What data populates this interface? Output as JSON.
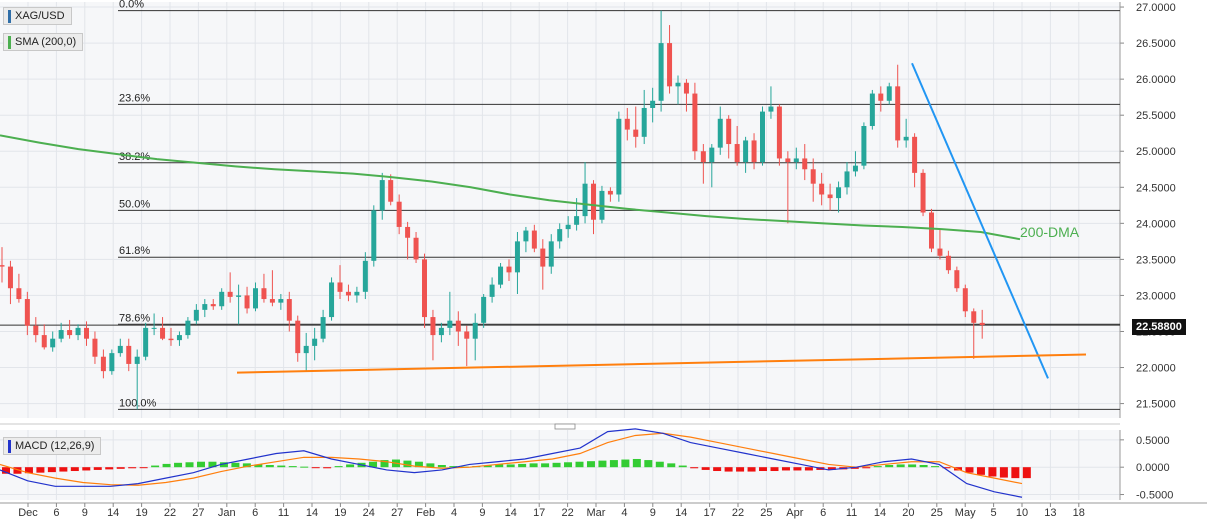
{
  "chart_data": [
    {
      "type": "candlestick",
      "symbol": "XAG/USD",
      "indicator_legend": "SMA (200,0)",
      "current_price_label": "22.58800",
      "current_price": 22.588,
      "ylim": [
        21.3,
        27.07
      ],
      "y_ticks": [
        "27.0000",
        "26.5000",
        "26.0000",
        "25.5000",
        "25.0000",
        "24.5000",
        "24.0000",
        "23.5000",
        "23.0000",
        "22.5000",
        "22.0000",
        "21.5000"
      ],
      "x_ticks": [
        "Dec",
        "6",
        "9",
        "14",
        "19",
        "22",
        "27",
        "Jan",
        "6",
        "11",
        "14",
        "19",
        "24",
        "27",
        "Feb",
        "4",
        "9",
        "14",
        "17",
        "22",
        "Mar",
        "4",
        "9",
        "14",
        "17",
        "22",
        "25",
        "Apr",
        "6",
        "11",
        "14",
        "20",
        "25",
        "May",
        "5",
        "10",
        "13",
        "18"
      ],
      "fibonacci_levels": [
        {
          "label": "0.0%",
          "value": 26.95
        },
        {
          "label": "23.6%",
          "value": 25.65
        },
        {
          "label": "38.2%",
          "value": 24.84
        },
        {
          "label": "50.0%",
          "value": 24.18
        },
        {
          "label": "61.8%",
          "value": 23.53
        },
        {
          "label": "78.6%",
          "value": 22.6
        },
        {
          "label": "100.0%",
          "value": 21.42
        }
      ],
      "annotations": [
        {
          "text": "200-DMA",
          "color": "#4caf50"
        }
      ],
      "colors": {
        "up": "#26a69a",
        "down": "#ef5350",
        "sma": "#4caf50",
        "trend_down": "#2196f3",
        "trend_up": "#ff7f0e"
      },
      "sma_200": [
        25.22,
        25.12,
        25.03,
        24.96,
        24.89,
        24.84,
        24.79,
        24.75,
        24.72,
        24.69,
        24.64,
        24.58,
        24.5,
        24.4,
        24.32,
        24.26,
        24.2,
        24.15,
        24.1,
        24.06,
        24.03,
        24.0,
        23.97,
        23.95,
        23.92,
        23.88,
        23.78
      ],
      "candles": [
        {
          "o": 23.42,
          "h": 23.67,
          "l": 23.18,
          "c": 23.4
        },
        {
          "o": 23.4,
          "h": 23.48,
          "l": 22.88,
          "c": 23.1
        },
        {
          "o": 23.1,
          "h": 23.3,
          "l": 22.9,
          "c": 22.95
        },
        {
          "o": 22.95,
          "h": 23.05,
          "l": 22.45,
          "c": 22.58
        },
        {
          "o": 22.58,
          "h": 22.7,
          "l": 22.35,
          "c": 22.45
        },
        {
          "o": 22.45,
          "h": 22.6,
          "l": 22.25,
          "c": 22.28
        },
        {
          "o": 22.28,
          "h": 22.5,
          "l": 22.22,
          "c": 22.4
        },
        {
          "o": 22.4,
          "h": 22.62,
          "l": 22.35,
          "c": 22.52
        },
        {
          "o": 22.52,
          "h": 22.66,
          "l": 22.4,
          "c": 22.45
        },
        {
          "o": 22.45,
          "h": 22.6,
          "l": 22.38,
          "c": 22.55
        },
        {
          "o": 22.55,
          "h": 22.64,
          "l": 22.3,
          "c": 22.4
        },
        {
          "o": 22.4,
          "h": 22.5,
          "l": 22.05,
          "c": 22.15
        },
        {
          "o": 22.15,
          "h": 22.25,
          "l": 21.85,
          "c": 21.95
        },
        {
          "o": 21.95,
          "h": 22.25,
          "l": 21.9,
          "c": 22.2
        },
        {
          "o": 22.2,
          "h": 22.4,
          "l": 22.15,
          "c": 22.3
        },
        {
          "o": 22.3,
          "h": 22.4,
          "l": 21.95,
          "c": 22.05
        },
        {
          "o": 22.05,
          "h": 22.25,
          "l": 21.42,
          "c": 22.15
        },
        {
          "o": 22.15,
          "h": 22.62,
          "l": 22.1,
          "c": 22.55
        },
        {
          "o": 22.55,
          "h": 22.75,
          "l": 22.45,
          "c": 22.55
        },
        {
          "o": 22.55,
          "h": 22.7,
          "l": 22.38,
          "c": 22.4
        },
        {
          "o": 22.4,
          "h": 22.55,
          "l": 22.3,
          "c": 22.38
        },
        {
          "o": 22.38,
          "h": 22.5,
          "l": 22.3,
          "c": 22.45
        },
        {
          "o": 22.45,
          "h": 22.7,
          "l": 22.4,
          "c": 22.65
        },
        {
          "o": 22.65,
          "h": 22.88,
          "l": 22.6,
          "c": 22.8
        },
        {
          "o": 22.8,
          "h": 22.95,
          "l": 22.7,
          "c": 22.88
        },
        {
          "o": 22.88,
          "h": 22.95,
          "l": 22.8,
          "c": 22.85
        },
        {
          "o": 22.85,
          "h": 23.1,
          "l": 22.8,
          "c": 23.05
        },
        {
          "o": 23.05,
          "h": 23.32,
          "l": 22.9,
          "c": 22.98
        },
        {
          "o": 22.98,
          "h": 23.15,
          "l": 22.6,
          "c": 23.0
        },
        {
          "o": 23.0,
          "h": 23.12,
          "l": 22.75,
          "c": 22.82
        },
        {
          "o": 22.82,
          "h": 23.18,
          "l": 22.78,
          "c": 23.1
        },
        {
          "o": 23.1,
          "h": 23.3,
          "l": 22.9,
          "c": 22.95
        },
        {
          "o": 22.95,
          "h": 23.35,
          "l": 22.85,
          "c": 22.9
        },
        {
          "o": 22.9,
          "h": 23.02,
          "l": 22.8,
          "c": 22.95
        },
        {
          "o": 22.95,
          "h": 23.05,
          "l": 22.5,
          "c": 22.65
        },
        {
          "o": 22.65,
          "h": 22.72,
          "l": 22.08,
          "c": 22.2
        },
        {
          "o": 22.2,
          "h": 22.48,
          "l": 21.95,
          "c": 22.3
        },
        {
          "o": 22.3,
          "h": 22.55,
          "l": 22.1,
          "c": 22.4
        },
        {
          "o": 22.4,
          "h": 22.8,
          "l": 22.35,
          "c": 22.7
        },
        {
          "o": 22.7,
          "h": 23.25,
          "l": 22.65,
          "c": 23.18
        },
        {
          "o": 23.18,
          "h": 23.42,
          "l": 22.95,
          "c": 23.05
        },
        {
          "o": 23.05,
          "h": 23.15,
          "l": 22.92,
          "c": 23.0
        },
        {
          "o": 23.0,
          "h": 23.12,
          "l": 22.9,
          "c": 23.05
        },
        {
          "o": 23.05,
          "h": 23.6,
          "l": 22.95,
          "c": 23.48
        },
        {
          "o": 23.48,
          "h": 24.25,
          "l": 23.4,
          "c": 24.18
        },
        {
          "o": 24.18,
          "h": 24.7,
          "l": 24.05,
          "c": 24.6
        },
        {
          "o": 24.6,
          "h": 24.68,
          "l": 24.25,
          "c": 24.3
        },
        {
          "o": 24.3,
          "h": 24.4,
          "l": 23.85,
          "c": 23.95
        },
        {
          "o": 23.95,
          "h": 24.02,
          "l": 23.5,
          "c": 23.8
        },
        {
          "o": 23.8,
          "h": 23.88,
          "l": 23.45,
          "c": 23.5
        },
        {
          "o": 23.5,
          "h": 23.58,
          "l": 22.55,
          "c": 22.7
        },
        {
          "o": 22.7,
          "h": 22.8,
          "l": 22.1,
          "c": 22.45
        },
        {
          "o": 22.45,
          "h": 22.62,
          "l": 22.35,
          "c": 22.55
        },
        {
          "o": 22.55,
          "h": 23.05,
          "l": 22.45,
          "c": 22.65
        },
        {
          "o": 22.65,
          "h": 22.78,
          "l": 22.3,
          "c": 22.5
        },
        {
          "o": 22.5,
          "h": 22.58,
          "l": 22.02,
          "c": 22.4
        },
        {
          "o": 22.4,
          "h": 22.75,
          "l": 22.1,
          "c": 22.62
        },
        {
          "o": 22.62,
          "h": 23.02,
          "l": 22.55,
          "c": 22.98
        },
        {
          "o": 22.98,
          "h": 23.25,
          "l": 22.9,
          "c": 23.15
        },
        {
          "o": 23.15,
          "h": 23.45,
          "l": 23.1,
          "c": 23.4
        },
        {
          "o": 23.4,
          "h": 23.5,
          "l": 23.2,
          "c": 23.32
        },
        {
          "o": 23.32,
          "h": 23.88,
          "l": 23.02,
          "c": 23.75
        },
        {
          "o": 23.75,
          "h": 23.95,
          "l": 23.6,
          "c": 23.9
        },
        {
          "o": 23.9,
          "h": 23.98,
          "l": 23.6,
          "c": 23.65
        },
        {
          "o": 23.65,
          "h": 23.78,
          "l": 23.08,
          "c": 23.4
        },
        {
          "o": 23.4,
          "h": 23.85,
          "l": 23.3,
          "c": 23.75
        },
        {
          "o": 23.75,
          "h": 24.0,
          "l": 23.65,
          "c": 23.92
        },
        {
          "o": 23.92,
          "h": 24.1,
          "l": 23.8,
          "c": 23.98
        },
        {
          "o": 23.98,
          "h": 24.35,
          "l": 23.9,
          "c": 24.1
        },
        {
          "o": 24.1,
          "h": 24.85,
          "l": 24.0,
          "c": 24.55
        },
        {
          "o": 24.55,
          "h": 24.6,
          "l": 23.85,
          "c": 24.05
        },
        {
          "o": 24.05,
          "h": 24.52,
          "l": 24.0,
          "c": 24.45
        },
        {
          "o": 24.45,
          "h": 24.5,
          "l": 24.3,
          "c": 24.4
        },
        {
          "o": 24.4,
          "h": 25.55,
          "l": 24.3,
          "c": 25.45
        },
        {
          "o": 25.45,
          "h": 25.6,
          "l": 25.15,
          "c": 25.3
        },
        {
          "o": 25.3,
          "h": 25.62,
          "l": 25.05,
          "c": 25.2
        },
        {
          "o": 25.2,
          "h": 25.85,
          "l": 25.1,
          "c": 25.6
        },
        {
          "o": 25.6,
          "h": 25.88,
          "l": 25.4,
          "c": 25.7
        },
        {
          "o": 25.7,
          "h": 26.95,
          "l": 25.55,
          "c": 26.5
        },
        {
          "o": 26.5,
          "h": 26.75,
          "l": 25.8,
          "c": 25.9
        },
        {
          "o": 25.9,
          "h": 26.05,
          "l": 25.65,
          "c": 25.95
        },
        {
          "o": 25.95,
          "h": 26.0,
          "l": 25.55,
          "c": 25.8
        },
        {
          "o": 25.8,
          "h": 25.95,
          "l": 24.88,
          "c": 25.0
        },
        {
          "o": 25.0,
          "h": 25.1,
          "l": 24.55,
          "c": 24.85
        },
        {
          "o": 24.85,
          "h": 25.1,
          "l": 24.5,
          "c": 25.05
        },
        {
          "o": 25.05,
          "h": 25.62,
          "l": 24.95,
          "c": 25.45
        },
        {
          "o": 25.45,
          "h": 25.5,
          "l": 24.9,
          "c": 25.1
        },
        {
          "o": 25.1,
          "h": 25.35,
          "l": 24.8,
          "c": 24.85
        },
        {
          "o": 24.85,
          "h": 25.2,
          "l": 24.7,
          "c": 25.15
        },
        {
          "o": 25.15,
          "h": 25.25,
          "l": 24.75,
          "c": 24.85
        },
        {
          "o": 24.85,
          "h": 25.62,
          "l": 24.8,
          "c": 25.55
        },
        {
          "o": 25.55,
          "h": 25.9,
          "l": 25.45,
          "c": 25.62
        },
        {
          "o": 25.62,
          "h": 25.65,
          "l": 24.8,
          "c": 24.9
        },
        {
          "o": 24.9,
          "h": 25.0,
          "l": 24.0,
          "c": 24.85
        },
        {
          "o": 24.85,
          "h": 25.05,
          "l": 24.75,
          "c": 24.9
        },
        {
          "o": 24.9,
          "h": 25.1,
          "l": 24.6,
          "c": 24.75
        },
        {
          "o": 24.75,
          "h": 24.9,
          "l": 24.3,
          "c": 24.55
        },
        {
          "o": 24.55,
          "h": 24.7,
          "l": 24.25,
          "c": 24.4
        },
        {
          "o": 24.4,
          "h": 24.55,
          "l": 24.18,
          "c": 24.35
        },
        {
          "o": 24.35,
          "h": 24.58,
          "l": 24.15,
          "c": 24.5
        },
        {
          "o": 24.5,
          "h": 24.85,
          "l": 24.4,
          "c": 24.72
        },
        {
          "o": 24.72,
          "h": 25.0,
          "l": 24.65,
          "c": 24.8
        },
        {
          "o": 24.8,
          "h": 25.4,
          "l": 24.75,
          "c": 25.35
        },
        {
          "o": 25.35,
          "h": 25.85,
          "l": 25.3,
          "c": 25.8
        },
        {
          "o": 25.8,
          "h": 25.9,
          "l": 25.55,
          "c": 25.7
        },
        {
          "o": 25.7,
          "h": 25.95,
          "l": 25.65,
          "c": 25.9
        },
        {
          "o": 25.9,
          "h": 26.2,
          "l": 25.05,
          "c": 25.15
        },
        {
          "o": 25.15,
          "h": 25.45,
          "l": 25.05,
          "c": 25.2
        },
        {
          "o": 25.2,
          "h": 25.25,
          "l": 24.5,
          "c": 24.7
        },
        {
          "o": 24.7,
          "h": 24.75,
          "l": 24.1,
          "c": 24.15
        },
        {
          "o": 24.15,
          "h": 24.2,
          "l": 23.6,
          "c": 23.65
        },
        {
          "o": 23.65,
          "h": 23.92,
          "l": 23.5,
          "c": 23.55
        },
        {
          "o": 23.55,
          "h": 23.62,
          "l": 23.3,
          "c": 23.35
        },
        {
          "o": 23.35,
          "h": 23.4,
          "l": 23.05,
          "c": 23.1
        },
        {
          "o": 23.1,
          "h": 23.15,
          "l": 22.7,
          "c": 22.78
        },
        {
          "o": 22.78,
          "h": 22.82,
          "l": 22.12,
          "c": 22.62
        },
        {
          "o": 22.62,
          "h": 22.8,
          "l": 22.4,
          "c": 22.59
        }
      ]
    },
    {
      "type": "macd",
      "legend": "MACD (12,26,9)",
      "ylim": [
        -0.6,
        0.68
      ],
      "y_ticks": [
        "0.5000",
        "0.0000",
        "-0.5000"
      ],
      "colors": {
        "hist_pos": "#33cc33",
        "hist_neg": "#ee1111",
        "macd": "#2233cc",
        "signal": "#ff7f0e"
      },
      "histogram": [
        -0.12,
        -0.12,
        -0.11,
        -0.1,
        -0.09,
        -0.08,
        -0.07,
        -0.06,
        -0.05,
        -0.04,
        -0.03,
        -0.02,
        -0.01,
        0.03,
        0.06,
        0.08,
        0.09,
        0.1,
        0.1,
        0.09,
        0.08,
        0.07,
        0.05,
        0.04,
        0.03,
        0.02,
        0.01,
        -0.01,
        -0.02,
        0.02,
        0.05,
        0.08,
        0.1,
        0.13,
        0.14,
        0.12,
        0.1,
        0.07,
        0.04,
        0.02,
        0.01,
        0.02,
        0.03,
        0.05,
        0.05,
        0.06,
        0.07,
        0.07,
        0.08,
        0.09,
        0.1,
        0.11,
        0.12,
        0.13,
        0.14,
        0.15,
        0.13,
        0.1,
        0.07,
        0.03,
        -0.02,
        -0.05,
        -0.07,
        -0.08,
        -0.08,
        -0.08,
        -0.07,
        -0.07,
        -0.06,
        -0.06,
        -0.06,
        -0.05,
        -0.05,
        -0.04,
        -0.03,
        -0.02,
        0.02,
        0.04,
        0.05,
        0.05,
        0.04,
        0.02,
        -0.02,
        -0.06,
        -0.1,
        -0.14,
        -0.17,
        -0.19,
        -0.2,
        -0.2
      ],
      "macd": [
        -0.05,
        -0.25,
        -0.35,
        -0.35,
        -0.35,
        -0.3,
        -0.2,
        -0.1,
        0.05,
        0.15,
        0.25,
        0.3,
        0.15,
        0.05,
        -0.05,
        -0.1,
        -0.05,
        0.05,
        0.1,
        0.15,
        0.25,
        0.35,
        0.65,
        0.7,
        0.62,
        0.45,
        0.35,
        0.25,
        0.15,
        0.05,
        -0.05,
        0.0,
        0.1,
        0.15,
        0.05,
        -0.3,
        -0.45,
        -0.55
      ],
      "signal": [
        0.05,
        -0.1,
        -0.2,
        -0.28,
        -0.32,
        -0.33,
        -0.28,
        -0.2,
        -0.08,
        0.02,
        0.1,
        0.18,
        0.18,
        0.15,
        0.1,
        0.02,
        -0.02,
        0.0,
        0.05,
        0.1,
        0.15,
        0.25,
        0.45,
        0.58,
        0.62,
        0.55,
        0.45,
        0.35,
        0.25,
        0.15,
        0.05,
        0.0,
        0.05,
        0.1,
        0.1,
        -0.1,
        -0.2,
        -0.3
      ]
    }
  ]
}
